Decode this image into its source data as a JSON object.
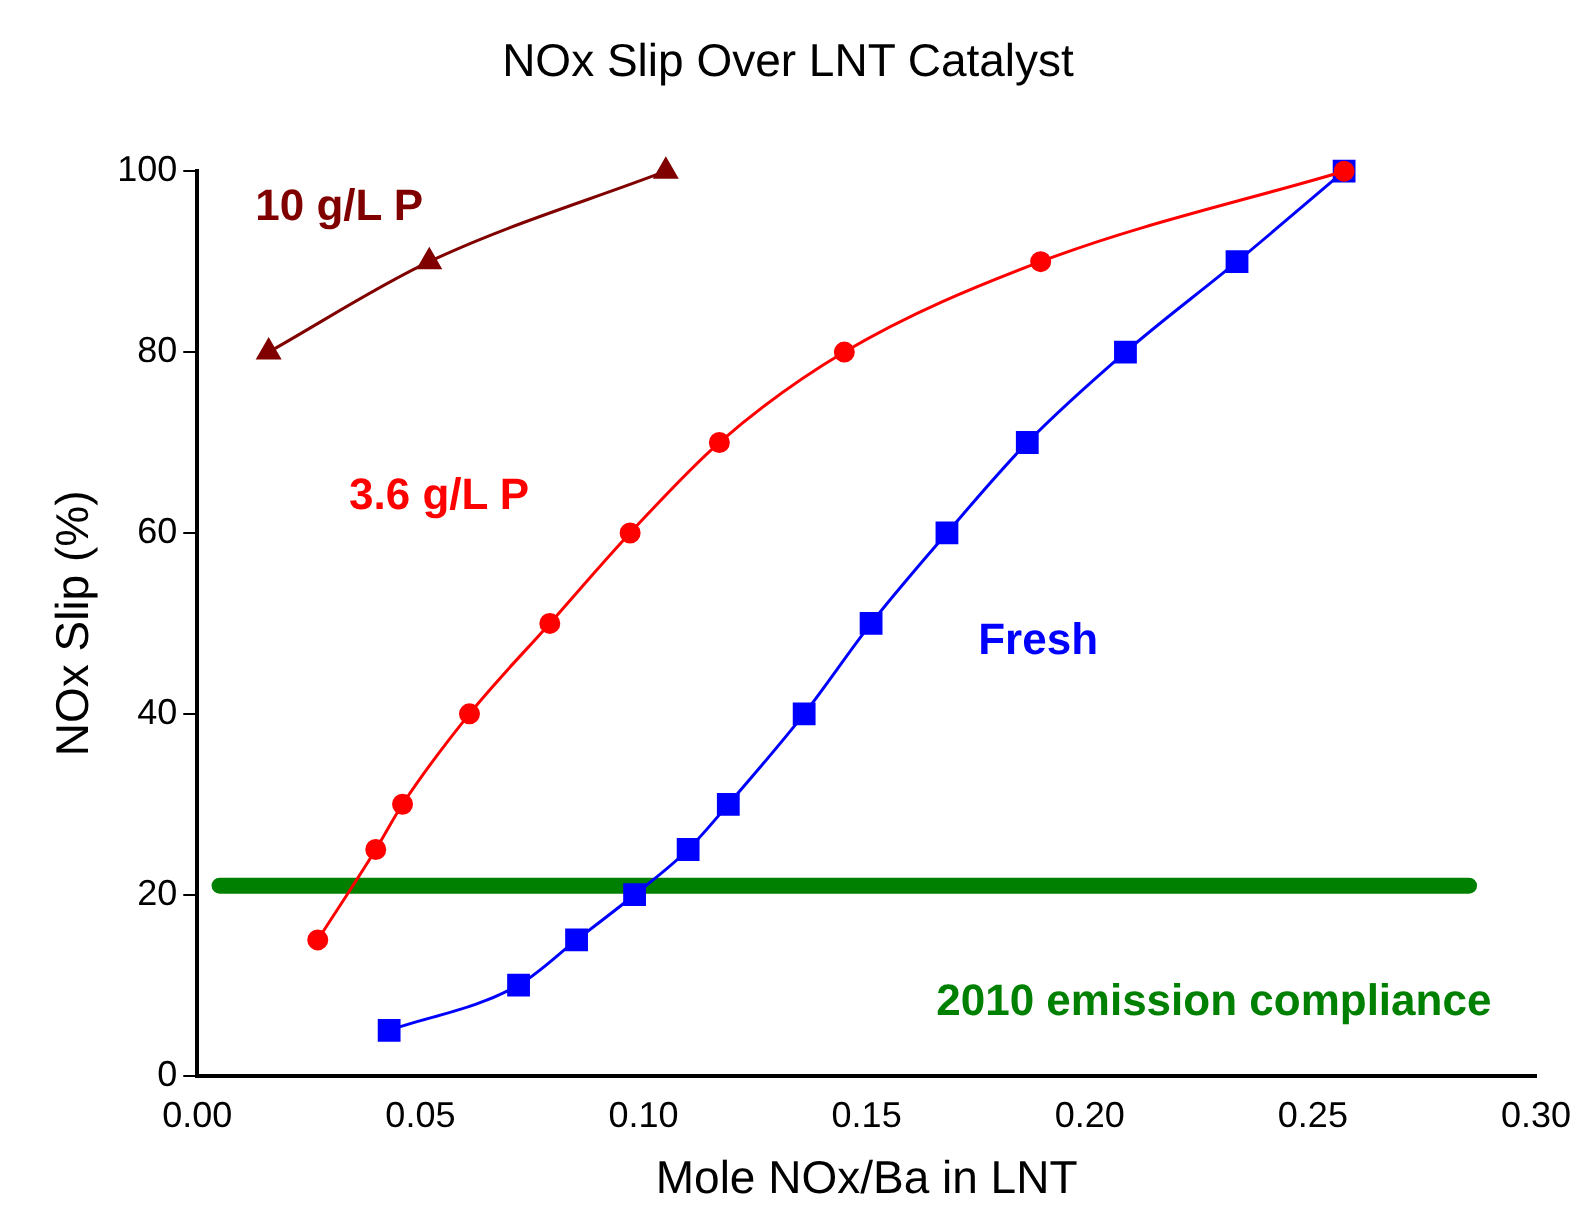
{
  "chart_data": {
    "type": "line",
    "title": "NOx Slip Over LNT Catalyst",
    "xlabel": "Mole NOx/Ba in LNT",
    "ylabel": "NOx Slip (%)",
    "xlim": [
      0,
      0.3
    ],
    "xticks": [
      {
        "value": 0,
        "label": "0.00"
      },
      0.05,
      {
        "value": 0.1,
        "label": "0.10"
      },
      0.15,
      {
        "value": 0.2,
        "label": "0.20"
      },
      0.25,
      {
        "value": 0.3,
        "label": "0.30"
      }
    ],
    "ylim": [
      0,
      100
    ],
    "yticks": [
      0,
      20,
      40,
      60,
      80,
      100
    ],
    "grid": false,
    "legend": false,
    "series": [
      {
        "name": "10 g/L P",
        "color": "#800000",
        "marker": "triangle",
        "x": [
          0.016,
          0.052,
          0.105
        ],
        "values": [
          80,
          90,
          100
        ]
      },
      {
        "name": "3.6 g/L P",
        "color": "#ff0000",
        "marker": "circle",
        "x": [
          0.027,
          0.04,
          0.046,
          0.061,
          0.079,
          0.097,
          0.117,
          0.145,
          0.189,
          0.257
        ],
        "values": [
          15,
          25,
          30,
          40,
          50,
          60,
          70,
          80,
          90,
          100
        ]
      },
      {
        "name": "Fresh",
        "color": "#0000ff",
        "marker": "square",
        "x": [
          0.043,
          0.072,
          0.085,
          0.098,
          0.11,
          0.119,
          0.136,
          0.151,
          0.168,
          0.186,
          0.208,
          0.233,
          0.257
        ],
        "values": [
          5,
          10,
          15,
          20,
          25,
          30,
          40,
          50,
          60,
          70,
          80,
          90,
          100
        ]
      },
      {
        "name": "2010 emission compliance",
        "color": "#008000",
        "marker": "none",
        "x": [
          0.005,
          0.285
        ],
        "values": [
          21,
          21
        ]
      }
    ]
  }
}
